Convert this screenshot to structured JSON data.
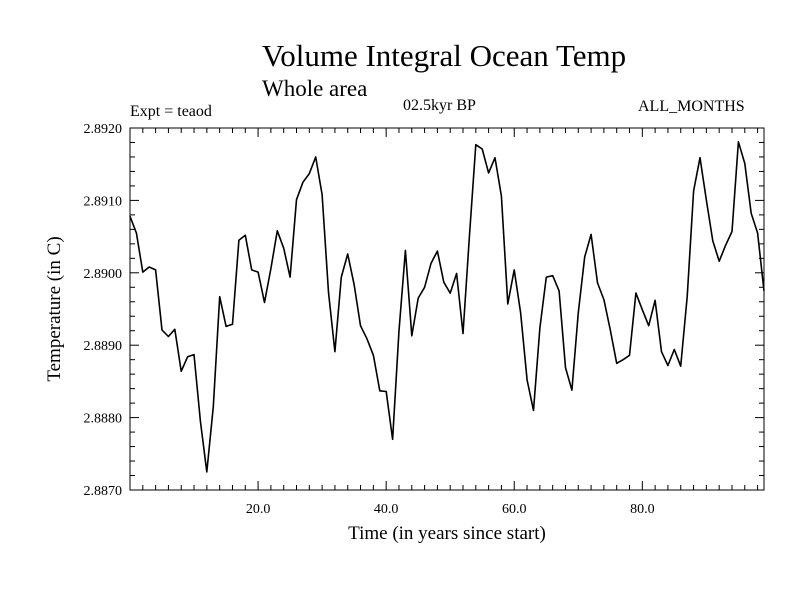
{
  "chart_data": {
    "type": "line",
    "title": "Volume Integral Ocean Temp",
    "subtitle": "Whole area",
    "experiment": "Expt = teaod",
    "period": "02.5kyr BP",
    "months": "ALL_MONTHS",
    "xlabel": "Time (in years since start)",
    "ylabel": "Temperature (in C)",
    "xlim": [
      0,
      99
    ],
    "ylim": [
      2.887,
      2.892
    ],
    "xticks": [
      20,
      40,
      60,
      80
    ],
    "xtick_labels": [
      "20.0",
      "40.0",
      "60.0",
      "80.0"
    ],
    "yticks": [
      2.887,
      2.888,
      2.889,
      2.89,
      2.891,
      2.892
    ],
    "ytick_labels": [
      "2.8870",
      "2.8880",
      "2.8890",
      "2.8900",
      "2.8910",
      "2.8920"
    ],
    "series": [
      {
        "name": "Volume Integral Ocean Temp",
        "x": [
          0,
          1,
          2,
          3,
          4,
          5,
          6,
          7,
          8,
          9,
          10,
          11,
          12,
          13,
          14,
          15,
          16,
          17,
          18,
          19,
          20,
          21,
          22,
          23,
          24,
          25,
          26,
          27,
          28,
          29,
          30,
          31,
          32,
          33,
          34,
          35,
          36,
          37,
          38,
          39,
          40,
          41,
          42,
          43,
          44,
          45,
          46,
          47,
          48,
          49,
          50,
          51,
          52,
          53,
          54,
          55,
          56,
          57,
          58,
          59,
          60,
          61,
          62,
          63,
          64,
          65,
          66,
          67,
          68,
          69,
          70,
          71,
          72,
          73,
          74,
          75,
          76,
          77,
          78,
          79,
          80,
          81,
          82,
          83,
          84,
          85,
          86,
          87,
          88,
          89,
          90,
          91,
          92,
          93,
          94,
          95,
          96,
          97,
          98,
          99
        ],
        "values": [
          2.89078,
          2.89055,
          2.89001,
          2.89008,
          2.89004,
          2.88921,
          2.88912,
          2.88922,
          2.88864,
          2.88884,
          2.88887,
          2.88795,
          2.88725,
          2.88815,
          2.88967,
          2.88926,
          2.88929,
          2.89045,
          2.89052,
          2.89004,
          2.89001,
          2.88959,
          2.89006,
          2.89058,
          2.89034,
          2.88994,
          2.89101,
          2.89125,
          2.89137,
          2.8916,
          2.89108,
          2.88973,
          2.88891,
          2.88994,
          2.89026,
          2.88984,
          2.88927,
          2.88909,
          2.88886,
          2.88837,
          2.88836,
          2.8877,
          2.8892,
          2.89031,
          2.88913,
          2.88965,
          2.8898,
          2.89013,
          2.8903,
          2.88987,
          2.88972,
          2.88999,
          2.88916,
          2.8905,
          2.89177,
          2.89171,
          2.89138,
          2.89159,
          2.89106,
          2.88957,
          2.89004,
          2.88945,
          2.88852,
          2.8881,
          2.88924,
          2.88994,
          2.88996,
          2.88975,
          2.88869,
          2.88838,
          2.88945,
          2.89022,
          2.89053,
          2.88986,
          2.88963,
          2.88921,
          2.88875,
          2.8888,
          2.88886,
          2.88972,
          2.88949,
          2.88927,
          2.88962,
          2.88891,
          2.88872,
          2.88894,
          2.88871,
          2.88967,
          2.89113,
          2.89159,
          2.891,
          2.89044,
          2.89016,
          2.89038,
          2.89057,
          2.89181,
          2.89151,
          2.89082,
          2.89055,
          2.88975
        ]
      }
    ]
  }
}
